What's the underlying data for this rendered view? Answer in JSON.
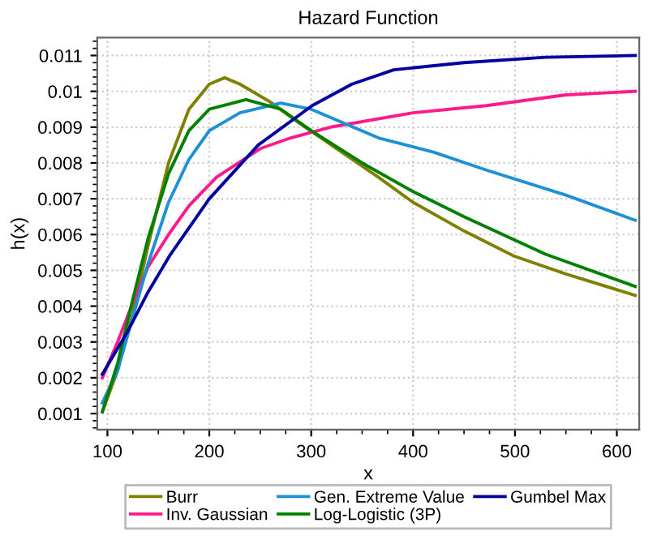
{
  "chart_data": {
    "type": "line",
    "title": "Hazard Function",
    "xlabel": "x",
    "ylabel": "h(x)",
    "xlim": [
      90,
      622
    ],
    "xticks": [
      100,
      200,
      300,
      400,
      500,
      600
    ],
    "ylim": [
      0.00055,
      0.0115
    ],
    "yticks": [
      0.001,
      0.002,
      0.003,
      0.004,
      0.005,
      0.006,
      0.007,
      0.008,
      0.009,
      0.01,
      0.011
    ],
    "grid": true,
    "legend": "bottom",
    "marker": "none",
    "line_style": "solid",
    "series": [
      {
        "name": "Burr",
        "color": "#808000",
        "x": [
          95,
          110,
          125,
          140,
          160,
          180,
          200,
          215,
          230,
          260,
          289,
          330,
          366,
          400,
          450,
          499,
          550,
          618
        ],
        "values": [
          0.00105,
          0.0022,
          0.0038,
          0.0057,
          0.008,
          0.0095,
          0.0102,
          0.01038,
          0.0102,
          0.0097,
          0.0091,
          0.0083,
          0.0076,
          0.0069,
          0.0061,
          0.0054,
          0.0049,
          0.0043
        ]
      },
      {
        "name": "Inv. Gaussian",
        "color": "#ff1a8c",
        "x": [
          95,
          110,
          125,
          140,
          160,
          180,
          207,
          250,
          280,
          319,
          400,
          472,
          550,
          618
        ],
        "values": [
          0.002,
          0.003,
          0.0041,
          0.0051,
          0.006,
          0.0068,
          0.0076,
          0.0084,
          0.0087,
          0.009,
          0.0094,
          0.0096,
          0.0099,
          0.01
        ]
      },
      {
        "name": "Gen. Extreme Value",
        "color": "#1e90d6",
        "x": [
          95,
          110,
          125,
          140,
          160,
          180,
          200,
          230,
          270,
          300,
          366,
          420,
          472,
          550,
          618
        ],
        "values": [
          0.0013,
          0.0022,
          0.0037,
          0.0052,
          0.0069,
          0.0081,
          0.0089,
          0.0094,
          0.00967,
          0.0095,
          0.0087,
          0.0083,
          0.0078,
          0.0071,
          0.0064
        ]
      },
      {
        "name": "Log-Logistic (3P)",
        "color": "#008000",
        "x": [
          95,
          110,
          125,
          140,
          160,
          180,
          200,
          236,
          270,
          300,
          350,
          400,
          450,
          530,
          618
        ],
        "values": [
          0.00105,
          0.0024,
          0.0042,
          0.0059,
          0.0077,
          0.0089,
          0.0095,
          0.00977,
          0.0095,
          0.0089,
          0.008,
          0.0072,
          0.0065,
          0.00545,
          0.00455
        ]
      },
      {
        "name": "Gumbel Max",
        "color": "#0000a0",
        "x": [
          95,
          120,
          140,
          162,
          200,
          248,
          301,
          340,
          381,
          450,
          530,
          618
        ],
        "values": [
          0.0021,
          0.0033,
          0.0044,
          0.00545,
          0.007,
          0.0085,
          0.0096,
          0.0102,
          0.0106,
          0.0108,
          0.01095,
          0.011
        ]
      }
    ]
  }
}
